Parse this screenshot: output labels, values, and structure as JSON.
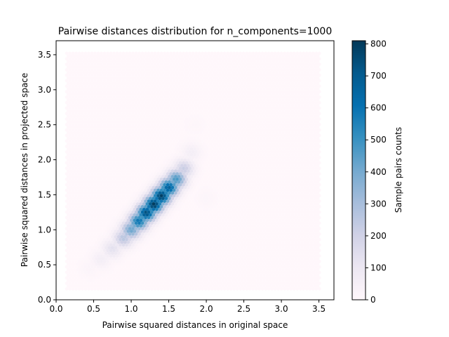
{
  "chart_data": {
    "type": "heatmap",
    "subtype": "hexbin",
    "title": "Pairwise distances distribution for n_components=1000",
    "xlabel": "Pairwise squared distances in original space",
    "ylabel": "Pairwise squared distances in projected space",
    "xlim": [
      0.0,
      3.7
    ],
    "ylim": [
      0.0,
      3.7
    ],
    "xticks": [
      "0.0",
      "0.5",
      "1.0",
      "1.5",
      "2.0",
      "2.5",
      "3.0",
      "3.5"
    ],
    "yticks": [
      "0.0",
      "0.5",
      "1.0",
      "1.5",
      "2.0",
      "2.5",
      "3.0",
      "3.5"
    ],
    "hexbin_extent": {
      "x": [
        0.14,
        3.52
      ],
      "y": [
        0.14,
        3.52
      ]
    },
    "density_ridge": [
      {
        "x": 0.45,
        "y": 0.45,
        "count": 20
      },
      {
        "x": 0.6,
        "y": 0.58,
        "count": 60
      },
      {
        "x": 0.75,
        "y": 0.73,
        "count": 130
      },
      {
        "x": 0.9,
        "y": 0.88,
        "count": 260
      },
      {
        "x": 1.0,
        "y": 1.0,
        "count": 420
      },
      {
        "x": 1.1,
        "y": 1.12,
        "count": 600
      },
      {
        "x": 1.2,
        "y": 1.24,
        "count": 740
      },
      {
        "x": 1.3,
        "y": 1.36,
        "count": 800
      },
      {
        "x": 1.4,
        "y": 1.48,
        "count": 790
      },
      {
        "x": 1.5,
        "y": 1.6,
        "count": 680
      },
      {
        "x": 1.6,
        "y": 1.72,
        "count": 480
      },
      {
        "x": 1.7,
        "y": 1.87,
        "count": 220
      },
      {
        "x": 1.8,
        "y": 2.1,
        "count": 60
      },
      {
        "x": 1.85,
        "y": 2.5,
        "count": 10
      },
      {
        "x": 2.0,
        "y": 1.45,
        "count": 15
      }
    ],
    "colorbar": {
      "label": "Sample pairs counts",
      "min": 0,
      "max": 810,
      "ticks": [
        "0",
        "100",
        "200",
        "300",
        "400",
        "500",
        "600",
        "700",
        "800"
      ],
      "colormap": "PuBu"
    },
    "colors": {
      "background_bin": "#fff7fb",
      "low": "#ece7f2",
      "mid": "#74a9cf",
      "high": "#0570b0",
      "max": "#023858"
    }
  }
}
